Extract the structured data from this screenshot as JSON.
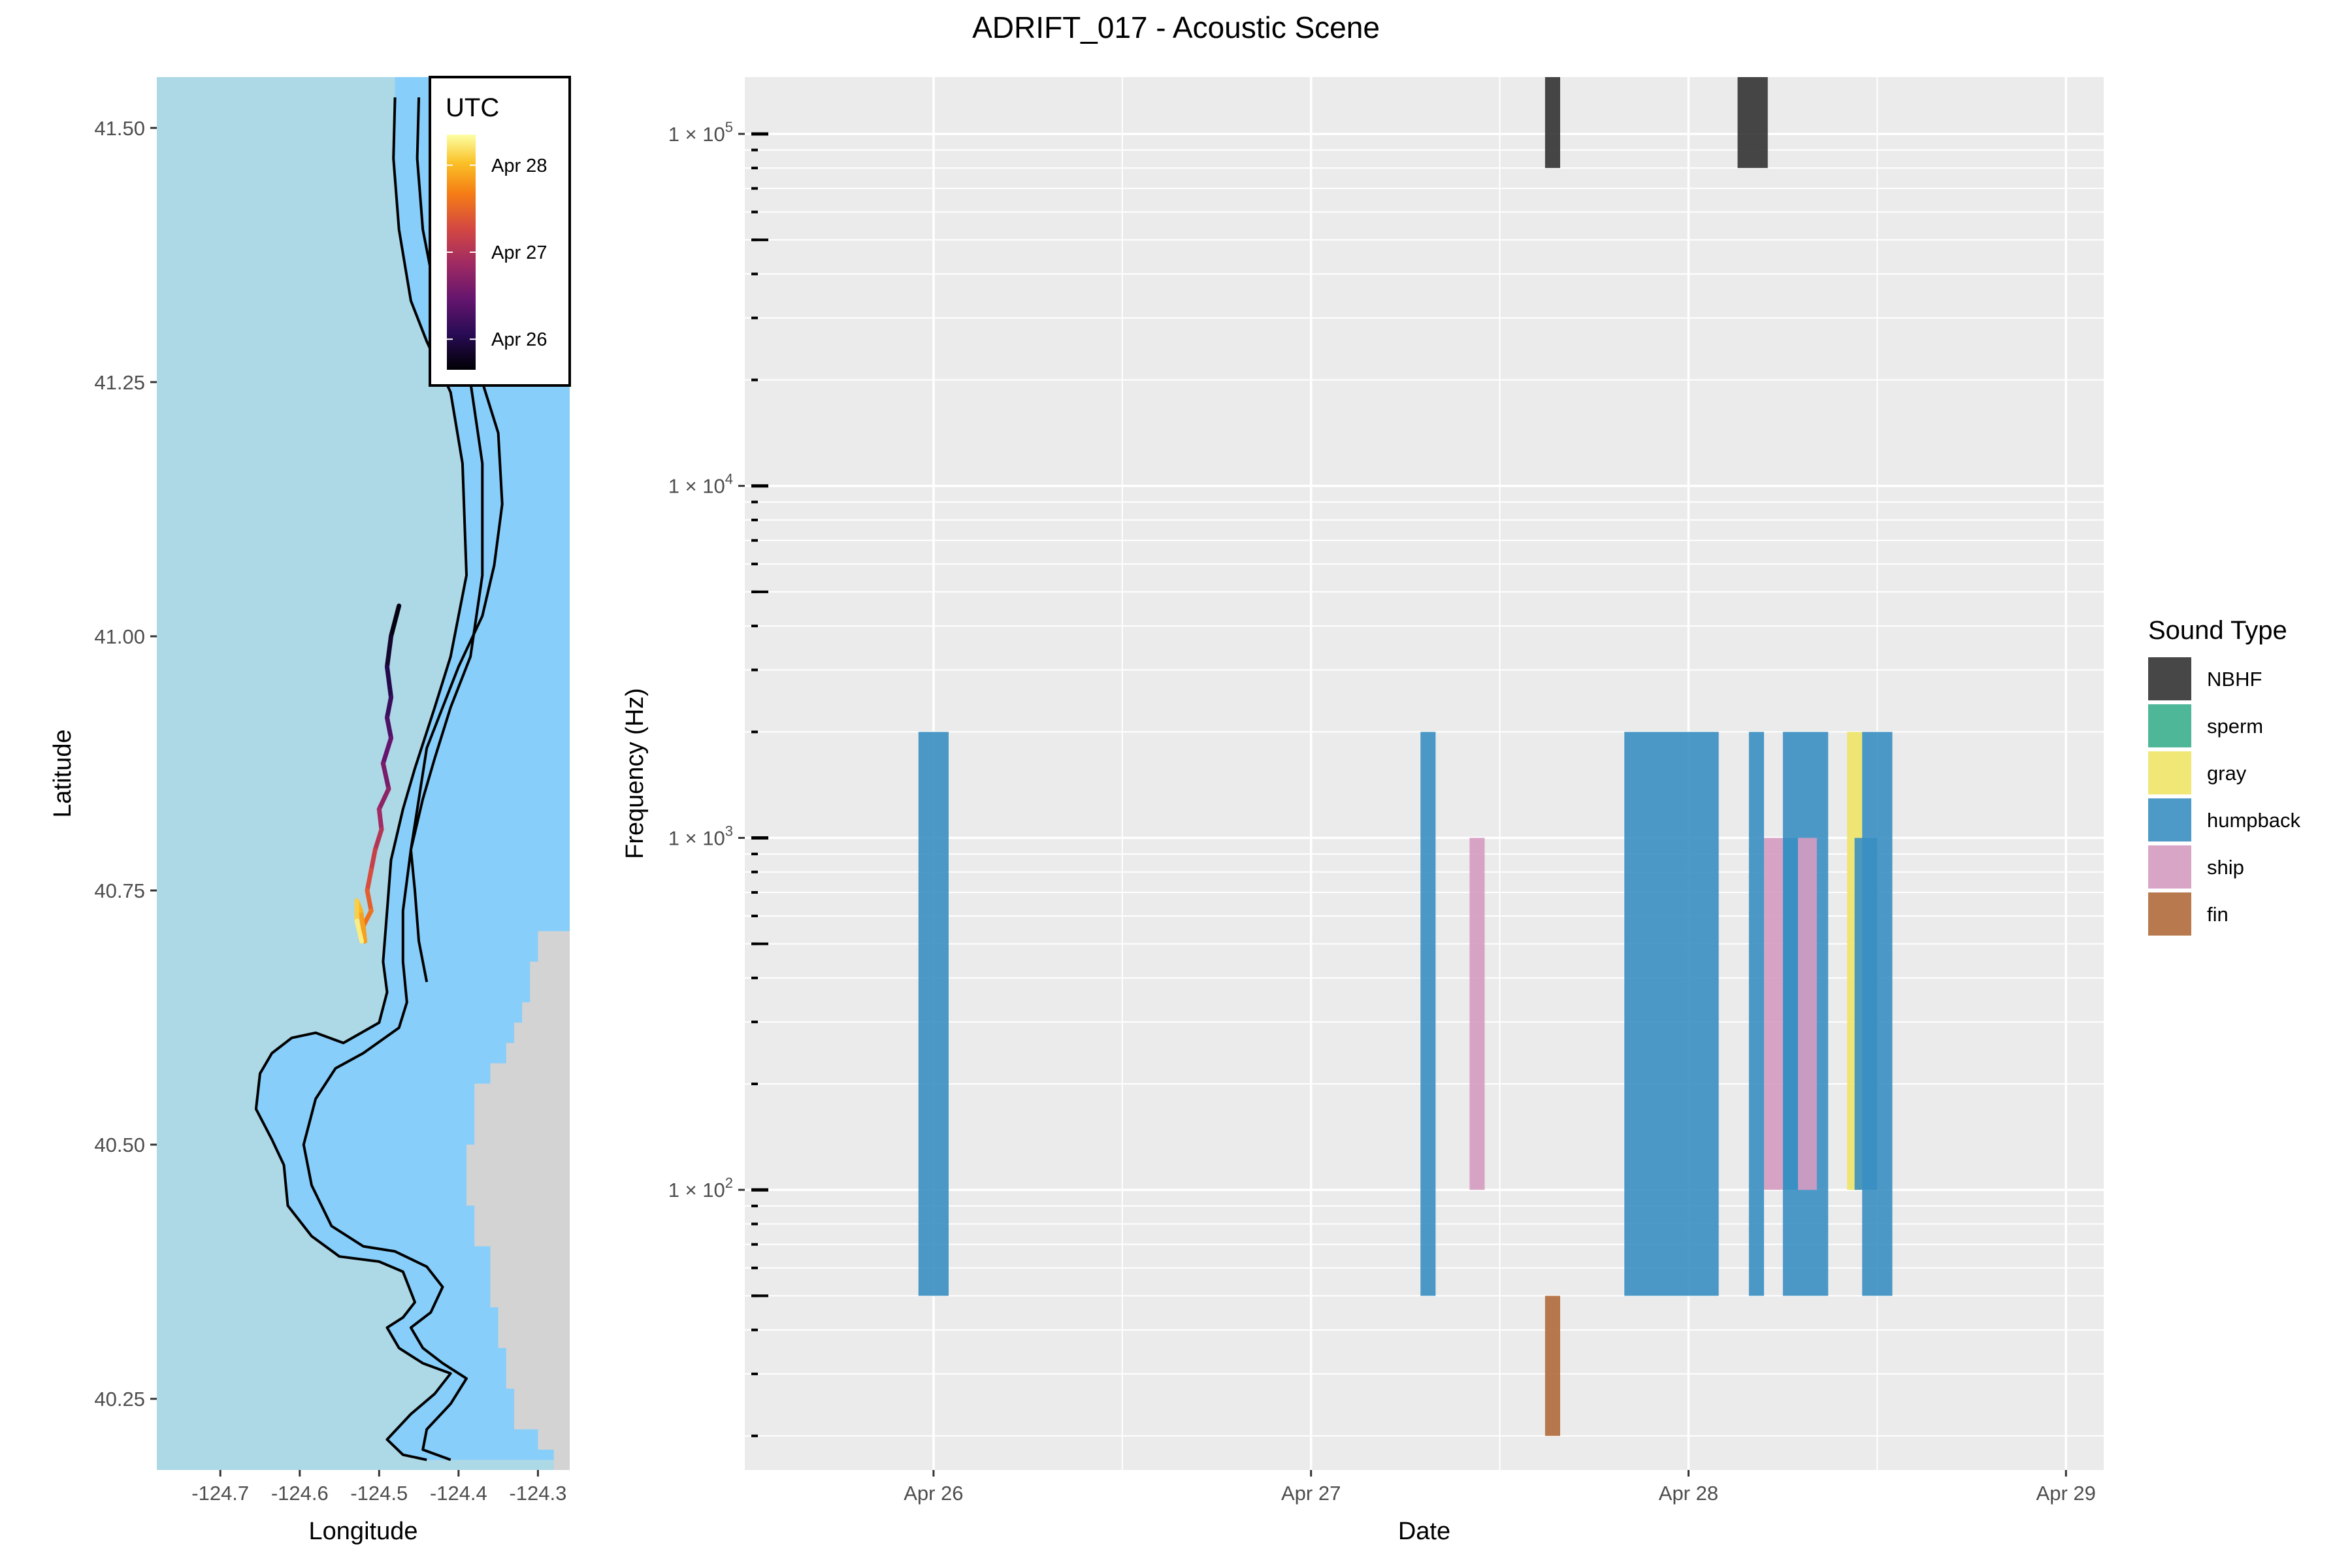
{
  "title": "ADRIFT_017 - Acoustic Scene",
  "colors": {
    "panel_bg": "#ebebeb",
    "grid": "#ffffff",
    "ocean_offshore": "#add8e6",
    "ocean_shelf": "#87cefa",
    "land": "#d3d3d3",
    "contour": "#000000"
  },
  "chart_data": [
    {
      "type": "map",
      "xlabel": "Longitude",
      "ylabel": "Latitude",
      "xlim": [
        -124.78,
        -124.26
      ],
      "ylim": [
        40.18,
        41.55
      ],
      "xticks": [
        -124.7,
        -124.6,
        -124.5,
        -124.4,
        -124.3
      ],
      "xtick_labels": [
        "-124.7",
        "-124.6",
        "-124.5",
        "-124.4",
        "-124.3"
      ],
      "yticks": [
        40.25,
        40.5,
        40.75,
        41.0,
        41.25,
        41.5
      ],
      "ytick_labels": [
        "40.25",
        "40.50",
        "40.75",
        "41.00",
        "41.25",
        "41.50"
      ],
      "drift_track": {
        "lon": [
          -124.475,
          -124.485,
          -124.49,
          -124.485,
          -124.49,
          -124.485,
          -124.495,
          -124.488,
          -124.5,
          -124.497,
          -124.505,
          -124.51,
          -124.515,
          -124.51,
          -124.52,
          -124.518,
          -124.523,
          -124.528,
          -124.528,
          -124.522
        ],
        "lat": [
          41.03,
          41.0,
          40.97,
          40.94,
          40.92,
          40.9,
          40.875,
          40.85,
          40.83,
          40.81,
          40.79,
          40.77,
          40.75,
          40.73,
          40.715,
          40.7,
          40.73,
          40.74,
          40.72,
          40.7
        ],
        "time_fraction": [
          0.0,
          0.05,
          0.1,
          0.16,
          0.21,
          0.26,
          0.31,
          0.36,
          0.41,
          0.46,
          0.51,
          0.56,
          0.61,
          0.66,
          0.71,
          0.76,
          0.81,
          0.86,
          0.92,
          1.0
        ]
      },
      "contours": [
        [
          [
            -124.48,
            41.53
          ],
          [
            -124.482,
            41.47
          ],
          [
            -124.475,
            41.4
          ],
          [
            -124.46,
            41.33
          ],
          [
            -124.44,
            41.29
          ],
          [
            -124.41,
            41.24
          ],
          [
            -124.395,
            41.17
          ],
          [
            -124.39,
            41.06
          ],
          [
            -124.41,
            40.98
          ],
          [
            -124.43,
            40.93
          ],
          [
            -124.455,
            40.87
          ],
          [
            -124.47,
            40.83
          ],
          [
            -124.485,
            40.78
          ],
          [
            -124.49,
            40.73
          ],
          [
            -124.495,
            40.68
          ],
          [
            -124.49,
            40.65
          ],
          [
            -124.5,
            40.62
          ],
          [
            -124.545,
            40.6
          ],
          [
            -124.58,
            40.61
          ],
          [
            -124.61,
            40.605
          ],
          [
            -124.635,
            40.59
          ],
          [
            -124.65,
            40.57
          ],
          [
            -124.655,
            40.535
          ],
          [
            -124.635,
            40.505
          ],
          [
            -124.62,
            40.48
          ],
          [
            -124.615,
            40.44
          ],
          [
            -124.585,
            40.41
          ],
          [
            -124.55,
            40.39
          ],
          [
            -124.5,
            40.385
          ],
          [
            -124.47,
            40.375
          ],
          [
            -124.455,
            40.345
          ],
          [
            -124.47,
            40.33
          ],
          [
            -124.49,
            40.32
          ],
          [
            -124.475,
            40.3
          ],
          [
            -124.445,
            40.285
          ],
          [
            -124.41,
            40.275
          ],
          [
            -124.43,
            40.255
          ],
          [
            -124.46,
            40.235
          ],
          [
            -124.49,
            40.21
          ],
          [
            -124.47,
            40.195
          ],
          [
            -124.44,
            40.19
          ]
        ],
        [
          [
            -124.45,
            41.53
          ],
          [
            -124.452,
            41.47
          ],
          [
            -124.445,
            41.4
          ],
          [
            -124.43,
            41.34
          ],
          [
            -124.41,
            41.3
          ],
          [
            -124.385,
            41.25
          ],
          [
            -124.37,
            41.17
          ],
          [
            -124.37,
            41.06
          ],
          [
            -124.385,
            40.98
          ],
          [
            -124.41,
            40.93
          ],
          [
            -124.43,
            40.88
          ],
          [
            -124.445,
            40.84
          ],
          [
            -124.46,
            40.79
          ],
          [
            -124.47,
            40.73
          ],
          [
            -124.47,
            40.68
          ],
          [
            -124.465,
            40.64
          ],
          [
            -124.475,
            40.615
          ],
          [
            -124.52,
            40.59
          ],
          [
            -124.555,
            40.575
          ],
          [
            -124.58,
            40.545
          ],
          [
            -124.595,
            40.5
          ],
          [
            -124.585,
            40.46
          ],
          [
            -124.56,
            40.42
          ],
          [
            -124.52,
            40.4
          ],
          [
            -124.48,
            40.395
          ],
          [
            -124.44,
            40.38
          ],
          [
            -124.42,
            40.36
          ],
          [
            -124.435,
            40.335
          ],
          [
            -124.46,
            40.32
          ],
          [
            -124.445,
            40.3
          ],
          [
            -124.42,
            40.285
          ],
          [
            -124.39,
            40.27
          ],
          [
            -124.41,
            40.245
          ],
          [
            -124.44,
            40.22
          ],
          [
            -124.445,
            40.2
          ],
          [
            -124.41,
            40.19
          ]
        ],
        [
          [
            -124.42,
            41.45
          ],
          [
            -124.415,
            41.35
          ],
          [
            -124.395,
            41.3
          ],
          [
            -124.37,
            41.25
          ],
          [
            -124.35,
            41.2
          ],
          [
            -124.345,
            41.13
          ],
          [
            -124.355,
            41.07
          ],
          [
            -124.37,
            41.02
          ],
          [
            -124.4,
            40.97
          ],
          [
            -124.42,
            40.93
          ],
          [
            -124.44,
            40.89
          ],
          [
            -124.45,
            40.84
          ],
          [
            -124.46,
            40.79
          ],
          [
            -124.455,
            40.75
          ],
          [
            -124.45,
            40.7
          ],
          [
            -124.44,
            40.66
          ]
        ]
      ],
      "legend": {
        "title": "UTC",
        "placement": "top-right",
        "labels": [
          "Apr 28",
          "Apr 27",
          "Apr 26"
        ]
      }
    },
    {
      "type": "bar",
      "subtype": "time-frequency-rectangles",
      "xlabel": "Date",
      "ylabel": "Frequency (Hz)",
      "yscale": "log10",
      "xlim": [
        -0.5,
        3.1
      ],
      "ylim": [
        16,
        145000
      ],
      "xticks": [
        0,
        1,
        2,
        3
      ],
      "xtick_labels": [
        "Apr 26",
        "Apr 27",
        "Apr 28",
        "Apr 29"
      ],
      "yticks": [
        100,
        1000,
        10000,
        100000
      ],
      "ytick_labels": [
        "1 × 10",
        "1 × 10",
        "1 × 10",
        "1 × 10"
      ],
      "ytick_exponents": [
        "2",
        "3",
        "4",
        "5"
      ],
      "note_x_units": "days since Apr 26 00:00",
      "series": [
        {
          "name": "NBHF",
          "color": "#333333",
          "rects": [
            [
              1.62,
              1.66,
              80000,
              145000
            ],
            [
              2.13,
              2.21,
              80000,
              145000
            ]
          ]
        },
        {
          "name": "sperm",
          "color": "#3aaf8c",
          "rects": []
        },
        {
          "name": "gray",
          "color": "#eee468",
          "rects": [
            [
              2.42,
              2.46,
              100,
              2000
            ]
          ]
        },
        {
          "name": "humpback",
          "color": "#3a8fc2",
          "rects": [
            [
              -0.04,
              0.04,
              50,
              2000
            ],
            [
              1.29,
              1.33,
              50,
              2000
            ],
            [
              1.83,
              2.08,
              50,
              2000
            ],
            [
              2.16,
              2.2,
              50,
              2000
            ],
            [
              2.25,
              2.37,
              50,
              2000
            ],
            [
              2.46,
              2.54,
              50,
              2000
            ],
            [
              2.25,
              2.29,
              100,
              1000
            ],
            [
              2.44,
              2.5,
              100,
              1000
            ]
          ]
        },
        {
          "name": "ship",
          "color": "#d59bc1",
          "rects": [
            [
              1.42,
              1.46,
              100,
              1000
            ],
            [
              2.2,
              2.25,
              100,
              1000
            ],
            [
              2.29,
              2.34,
              100,
              1000
            ]
          ]
        },
        {
          "name": "fin",
          "color": "#b06a3b",
          "rects": [
            [
              1.62,
              1.66,
              20,
              50
            ]
          ]
        }
      ],
      "legend": {
        "title": "Sound Type",
        "placement": "right",
        "entries": [
          "NBHF",
          "sperm",
          "gray",
          "humpback",
          "ship",
          "fin"
        ]
      }
    }
  ]
}
